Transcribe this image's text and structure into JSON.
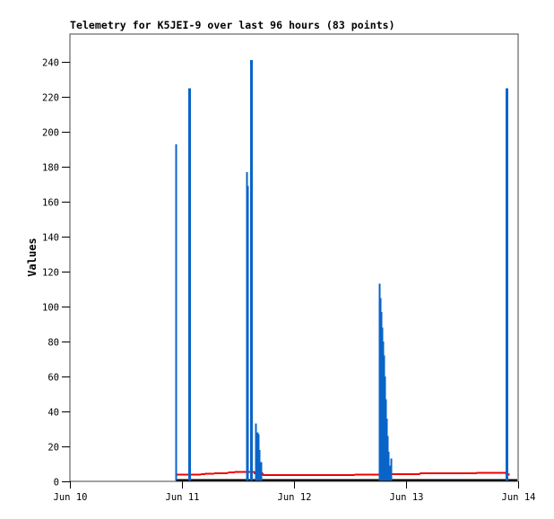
{
  "window": {
    "background": "#ffffff"
  },
  "chart_data": {
    "type": "line",
    "title": "Telemetry for K5JEI-9 over last 96 hours (83 points)",
    "ylabel": "Values",
    "xlabel": "",
    "x_unit": "hours since Jun 10 00:00",
    "xlim": [
      0,
      96
    ],
    "ylim": [
      0,
      256
    ],
    "yticks": [
      0,
      20,
      40,
      60,
      80,
      100,
      120,
      140,
      160,
      180,
      200,
      220,
      240
    ],
    "xticks": [
      {
        "hour": 0,
        "label": "Jun 10"
      },
      {
        "hour": 24,
        "label": "Jun 11"
      },
      {
        "hour": 48,
        "label": "Jun 12"
      },
      {
        "hour": 72,
        "label": "Jun 13"
      },
      {
        "hour": 96,
        "label": "Jun 14"
      }
    ],
    "grid": false,
    "legend": "none",
    "colors": {
      "spike_series": "#0a64c8",
      "red_series": "#ee0000",
      "black_series": "#000000",
      "frame": "#444444",
      "text": "#000000",
      "background": "#ffffff"
    },
    "series": [
      {
        "name": "channel-blue-spikes",
        "style": "impulse",
        "color": "#0a64c8",
        "points_hvw": [
          [
            22.66,
            193,
            2
          ],
          [
            25.54,
            225,
            3
          ],
          [
            37.82,
            177,
            2
          ],
          [
            38.02,
            169,
            2
          ],
          [
            38.78,
            241,
            3
          ],
          [
            39.74,
            33,
            2
          ],
          [
            40.08,
            28,
            2
          ],
          [
            40.32,
            27,
            2
          ],
          [
            40.56,
            18,
            2
          ],
          [
            40.8,
            11,
            2
          ],
          [
            66.24,
            113,
            2
          ],
          [
            66.43,
            105,
            2
          ],
          [
            66.62,
            97,
            2
          ],
          [
            66.82,
            88,
            2
          ],
          [
            67.01,
            80,
            2
          ],
          [
            67.2,
            72,
            2
          ],
          [
            67.39,
            60,
            2
          ],
          [
            67.58,
            47,
            2
          ],
          [
            67.78,
            36,
            2
          ],
          [
            67.97,
            26,
            2
          ],
          [
            68.16,
            17,
            2
          ],
          [
            68.35,
            9,
            2
          ],
          [
            68.74,
            13,
            2
          ],
          [
            93.5,
            225,
            3
          ]
        ]
      },
      {
        "name": "channel-red-line",
        "style": "line",
        "color": "#ee0000",
        "width": 2,
        "points": [
          [
            22.66,
            3.8
          ],
          [
            28.8,
            4.0
          ],
          [
            29.0,
            4.4
          ],
          [
            33.5,
            4.6
          ],
          [
            34.0,
            5.0
          ],
          [
            36.0,
            5.4
          ],
          [
            39.4,
            5.4
          ],
          [
            39.6,
            4.6
          ],
          [
            41.2,
            4.6
          ],
          [
            41.4,
            3.7
          ],
          [
            60.0,
            3.7
          ],
          [
            66.0,
            3.8
          ],
          [
            68.6,
            4.0
          ],
          [
            74.8,
            4.0
          ],
          [
            75.1,
            4.6
          ],
          [
            87.0,
            4.6
          ],
          [
            87.3,
            5.0
          ],
          [
            93.2,
            5.0
          ],
          [
            93.6,
            4.2
          ],
          [
            94.2,
            3.8
          ]
        ]
      },
      {
        "name": "channel-black-line",
        "style": "line",
        "color": "#000000",
        "width": 2,
        "points": [
          [
            22.66,
            0.8
          ],
          [
            95.8,
            0.8
          ]
        ]
      }
    ]
  }
}
